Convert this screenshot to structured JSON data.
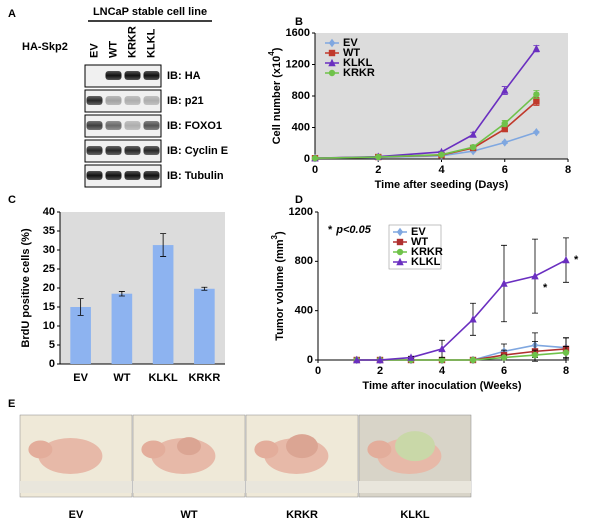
{
  "panel_labels": [
    "A",
    "B",
    "C",
    "D",
    "E"
  ],
  "blot": {
    "header": "LNCaP stable cell line",
    "lanes": [
      "EV",
      "WT",
      "KRKR",
      "KLKL"
    ],
    "row_label": "HA-Skp2",
    "rows": [
      "IB: HA",
      "IB: p21",
      "IB: FOXO1",
      "IB: Cyclin E",
      "IB: Tubulin"
    ]
  },
  "chart_data": [
    {
      "type": "line",
      "x": [
        0,
        2,
        4,
        5,
        6,
        7
      ],
      "xlim": [
        0,
        8
      ],
      "xticks": [
        0,
        2,
        4,
        6,
        8
      ],
      "ylim": [
        0,
        1600
      ],
      "yticks": [
        0,
        400,
        800,
        1200,
        1600
      ],
      "xlabel": "Time after seeding (Days)",
      "ylabel": {
        "text": "Cell number (x10",
        "sup": "4",
        "end": ")"
      },
      "legend": "upper left",
      "series": [
        {
          "name": "EV",
          "color": "#7fa7e0",
          "marker": "diamond",
          "values": [
            10,
            20,
            40,
            100,
            210,
            340
          ],
          "errors": [
            0,
            0,
            5,
            10,
            15,
            10
          ]
        },
        {
          "name": "WT",
          "color": "#c0392b",
          "marker": "square",
          "values": [
            10,
            25,
            50,
            140,
            380,
            730
          ],
          "errors": [
            0,
            0,
            5,
            15,
            30,
            50
          ]
        },
        {
          "name": "KLKL",
          "color": "#6a2fc0",
          "marker": "triangle",
          "values": [
            10,
            30,
            90,
            310,
            870,
            1400
          ],
          "errors": [
            0,
            0,
            10,
            30,
            50,
            40
          ]
        },
        {
          "name": "KRKR",
          "color": "#6fc24a",
          "marker": "circle",
          "values": [
            10,
            25,
            55,
            150,
            450,
            820
          ],
          "errors": [
            0,
            0,
            5,
            20,
            40,
            50
          ]
        }
      ]
    },
    {
      "type": "bar",
      "categories": [
        "EV",
        "WT",
        "KLKL",
        "KRKR"
      ],
      "values": [
        15,
        18.5,
        31.3,
        19.8
      ],
      "errors": [
        2.2,
        0.6,
        3,
        0.4
      ],
      "color": "#8db3f0",
      "ylim": [
        0,
        40
      ],
      "yticks": [
        0,
        5,
        10,
        15,
        20,
        25,
        30,
        35,
        40
      ],
      "ylabel": {
        "text": "BrdU positive cells (%)"
      }
    },
    {
      "type": "line",
      "x": [
        1.25,
        2,
        3,
        4,
        5,
        6,
        7,
        8
      ],
      "xlim": [
        0,
        8
      ],
      "xticks": [
        0,
        2,
        4,
        6,
        8
      ],
      "ylim": [
        0,
        1200
      ],
      "yticks": [
        0,
        400,
        800,
        1200
      ],
      "xlabel": "Time after inoculation (Weeks)",
      "ylabel": {
        "text": "Tumor volume  (mm",
        "sup": "3",
        "end": ")"
      },
      "legend": "upper center",
      "note": {
        "star": "*",
        "text": "p<0.05"
      },
      "annotations": [
        "*",
        "*"
      ],
      "series": [
        {
          "name": "EV",
          "color": "#7fa7e0",
          "marker": "diamond",
          "values": [
            0,
            0,
            0,
            0,
            0,
            70,
            120,
            100
          ],
          "errors": [
            0,
            0,
            0,
            0,
            0,
            60,
            100,
            80
          ]
        },
        {
          "name": "WT",
          "color": "#b03030",
          "marker": "square",
          "values": [
            0,
            0,
            0,
            0,
            0,
            40,
            70,
            90
          ],
          "errors": [
            0,
            0,
            0,
            0,
            0,
            40,
            80,
            90
          ]
        },
        {
          "name": "KRKR",
          "color": "#6fc24a",
          "marker": "circle",
          "values": [
            0,
            0,
            0,
            0,
            0,
            20,
            40,
            60
          ],
          "errors": [
            0,
            0,
            0,
            0,
            0,
            20,
            40,
            50
          ]
        },
        {
          "name": "KLKL",
          "color": "#6a2fc0",
          "marker": "triangle",
          "values": [
            0,
            0,
            20,
            90,
            330,
            620,
            680,
            810
          ],
          "errors": [
            0,
            0,
            10,
            70,
            130,
            310,
            300,
            180
          ]
        }
      ]
    }
  ],
  "photos": {
    "labels": [
      "EV",
      "WT",
      "KRKR",
      "KLKL"
    ]
  }
}
